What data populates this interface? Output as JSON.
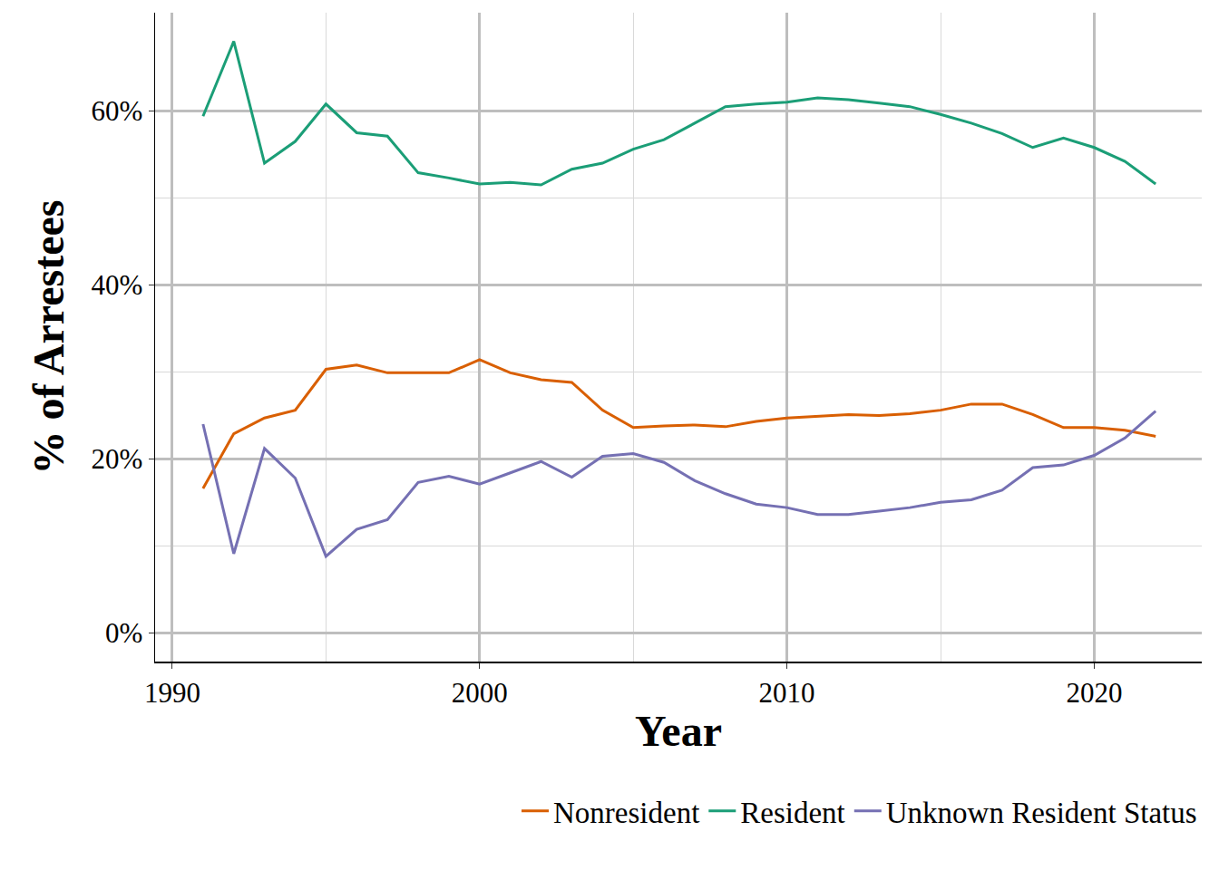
{
  "chart_data": {
    "type": "line",
    "x_label": "Year",
    "y_label": "% of Arrestees",
    "x": [
      1991,
      1992,
      1993,
      1994,
      1995,
      1996,
      1997,
      1998,
      1999,
      2000,
      2001,
      2002,
      2003,
      2004,
      2005,
      2006,
      2007,
      2008,
      2009,
      2010,
      2011,
      2012,
      2013,
      2014,
      2015,
      2016,
      2017,
      2018,
      2019,
      2020,
      2021,
      2022
    ],
    "series": [
      {
        "name": "Nonresident",
        "color": "#D95F02",
        "values": [
          16.6,
          22.9,
          24.7,
          25.6,
          30.3,
          30.8,
          29.9,
          29.9,
          29.9,
          31.4,
          29.9,
          29.1,
          28.8,
          25.6,
          23.6,
          23.8,
          23.9,
          23.7,
          24.3,
          24.7,
          24.9,
          25.1,
          25.0,
          25.2,
          25.6,
          26.3,
          26.3,
          25.1,
          23.6,
          23.6,
          23.3,
          22.6
        ]
      },
      {
        "name": "Resident",
        "color": "#1B9E77",
        "values": [
          59.4,
          68.0,
          54.0,
          56.5,
          60.8,
          57.5,
          57.1,
          52.9,
          52.3,
          51.6,
          51.8,
          51.5,
          53.3,
          54.0,
          55.6,
          56.7,
          58.6,
          60.5,
          60.8,
          61.0,
          61.5,
          61.3,
          60.9,
          60.5,
          59.6,
          58.6,
          57.4,
          55.8,
          56.9,
          55.8,
          54.2,
          51.6
        ]
      },
      {
        "name": "Unknown Resident Status",
        "color": "#7570B3",
        "values": [
          24.0,
          9.1,
          21.2,
          17.8,
          8.8,
          11.9,
          13.0,
          17.3,
          18.0,
          17.1,
          18.4,
          19.7,
          17.9,
          20.3,
          20.6,
          19.6,
          17.5,
          16.0,
          14.8,
          14.4,
          13.6,
          13.6,
          14.0,
          14.4,
          15.0,
          15.3,
          16.4,
          19.0,
          19.3,
          20.4,
          22.4,
          25.5
        ]
      }
    ],
    "xlim": [
      1989.44,
      2023.5
    ],
    "xticks": [
      1990,
      2000,
      2010,
      2020
    ],
    "ylim": [
      -3.3,
      71.3
    ],
    "yticks": [
      {
        "value": 0,
        "label": "0%"
      },
      {
        "value": 20,
        "label": "20%"
      },
      {
        "value": 40,
        "label": "40%"
      },
      {
        "value": 60,
        "label": "60%"
      }
    ],
    "grid": true,
    "legend": "bottom"
  }
}
